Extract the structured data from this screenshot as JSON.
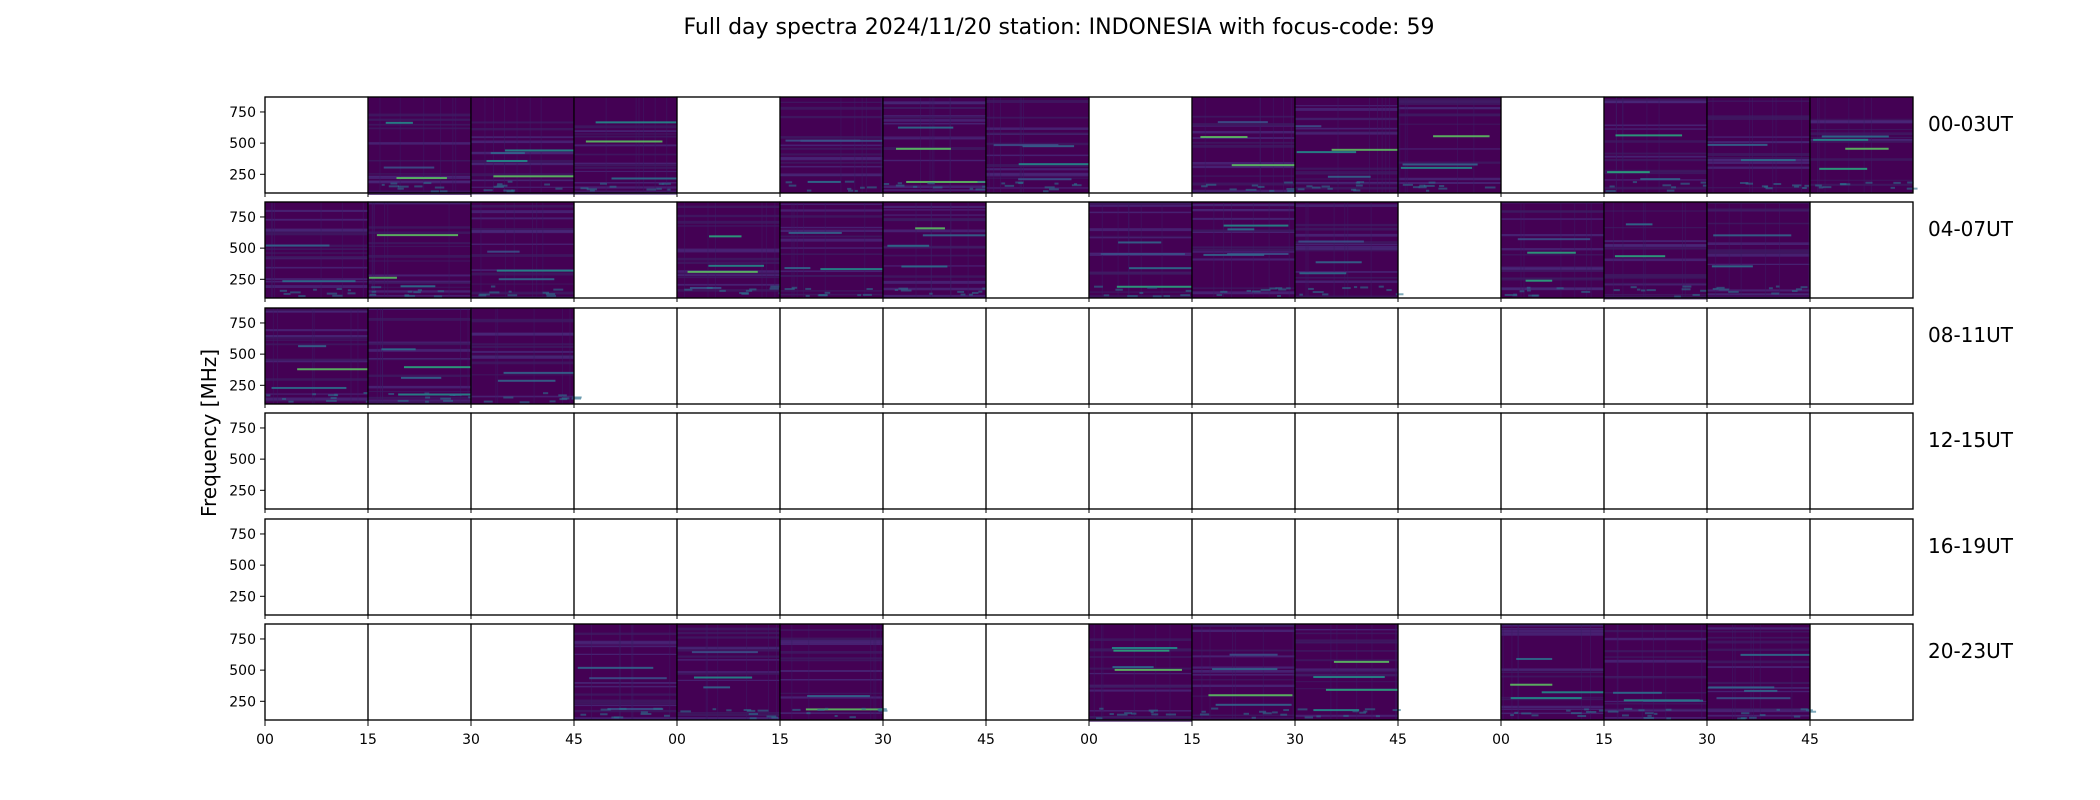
{
  "chart_data": {
    "type": "heatmap",
    "title": "Full day spectra 2024/11/20 station: INDONESIA with focus-code: 59",
    "ylabel": "Frequency [MHz]",
    "xlabel": "",
    "colormap": "viridis",
    "colors": {
      "background": "#440154",
      "accent": "#21918c",
      "bright": "#5ec962"
    },
    "y_ticks": [
      250,
      500,
      750
    ],
    "ylim": [
      100,
      870
    ],
    "x_tick_labels": [
      "00",
      "15",
      "30",
      "45",
      "00",
      "15",
      "30",
      "45",
      "00",
      "15",
      "30",
      "45",
      "00",
      "15",
      "30",
      "45"
    ],
    "rows": [
      {
        "label": "00-03UT",
        "filled": [
          false,
          true,
          true,
          true,
          false,
          true,
          true,
          true,
          false,
          true,
          true,
          true,
          false,
          true,
          true,
          true
        ]
      },
      {
        "label": "04-07UT",
        "filled": [
          true,
          true,
          true,
          false,
          true,
          true,
          true,
          false,
          true,
          true,
          true,
          false,
          true,
          true,
          true,
          false
        ]
      },
      {
        "label": "08-11UT",
        "filled": [
          true,
          true,
          true,
          false,
          false,
          false,
          false,
          false,
          false,
          false,
          false,
          false,
          false,
          false,
          false,
          false
        ]
      },
      {
        "label": "12-15UT",
        "filled": [
          false,
          false,
          false,
          false,
          false,
          false,
          false,
          false,
          false,
          false,
          false,
          false,
          false,
          false,
          false,
          false
        ]
      },
      {
        "label": "16-19UT",
        "filled": [
          false,
          false,
          false,
          false,
          false,
          false,
          false,
          false,
          false,
          false,
          false,
          false,
          false,
          false,
          false,
          false
        ]
      },
      {
        "label": "20-23UT",
        "filled": [
          false,
          false,
          false,
          true,
          true,
          true,
          false,
          false,
          true,
          true,
          true,
          false,
          true,
          true,
          true,
          false
        ]
      }
    ]
  }
}
